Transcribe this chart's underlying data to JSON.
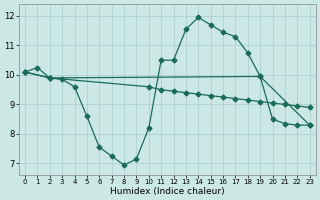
{
  "bg_color": "#cce8e4",
  "grid_color": "#aacccc",
  "line_color": "#1a6b5a",
  "xlabel": "Humidex (Indice chaleur)",
  "yticks": [
    7,
    8,
    9,
    10,
    11,
    12
  ],
  "xticks": [
    0,
    1,
    2,
    3,
    4,
    5,
    6,
    7,
    8,
    9,
    10,
    11,
    12,
    13,
    14,
    15,
    16,
    17,
    18,
    19,
    20,
    21,
    22,
    23
  ],
  "xlim": [
    -0.5,
    23.5
  ],
  "ylim": [
    6.6,
    12.4
  ],
  "line1_x": [
    0,
    1,
    2,
    3,
    4,
    5,
    6,
    7,
    8,
    9,
    10,
    11,
    12,
    13,
    14,
    15,
    16,
    17,
    18,
    19,
    20,
    21,
    22,
    23
  ],
  "line1_y": [
    10.1,
    10.25,
    9.9,
    9.85,
    9.6,
    8.6,
    7.55,
    7.25,
    6.95,
    7.15,
    8.2,
    10.5,
    10.5,
    11.55,
    11.95,
    11.7,
    11.45,
    11.3,
    10.75,
    9.95,
    8.5,
    8.35,
    8.3,
    8.3
  ],
  "line2_x": [
    0,
    2,
    19,
    23
  ],
  "line2_y": [
    10.1,
    9.9,
    9.95,
    8.3
  ],
  "line3_x": [
    0,
    2,
    10,
    11,
    12,
    13,
    14,
    15,
    16,
    17,
    18,
    19,
    20,
    21,
    22,
    23
  ],
  "line3_y": [
    10.1,
    9.9,
    9.6,
    9.5,
    9.45,
    9.4,
    9.35,
    9.3,
    9.25,
    9.2,
    9.15,
    9.1,
    9.05,
    9.0,
    8.95,
    8.9
  ]
}
